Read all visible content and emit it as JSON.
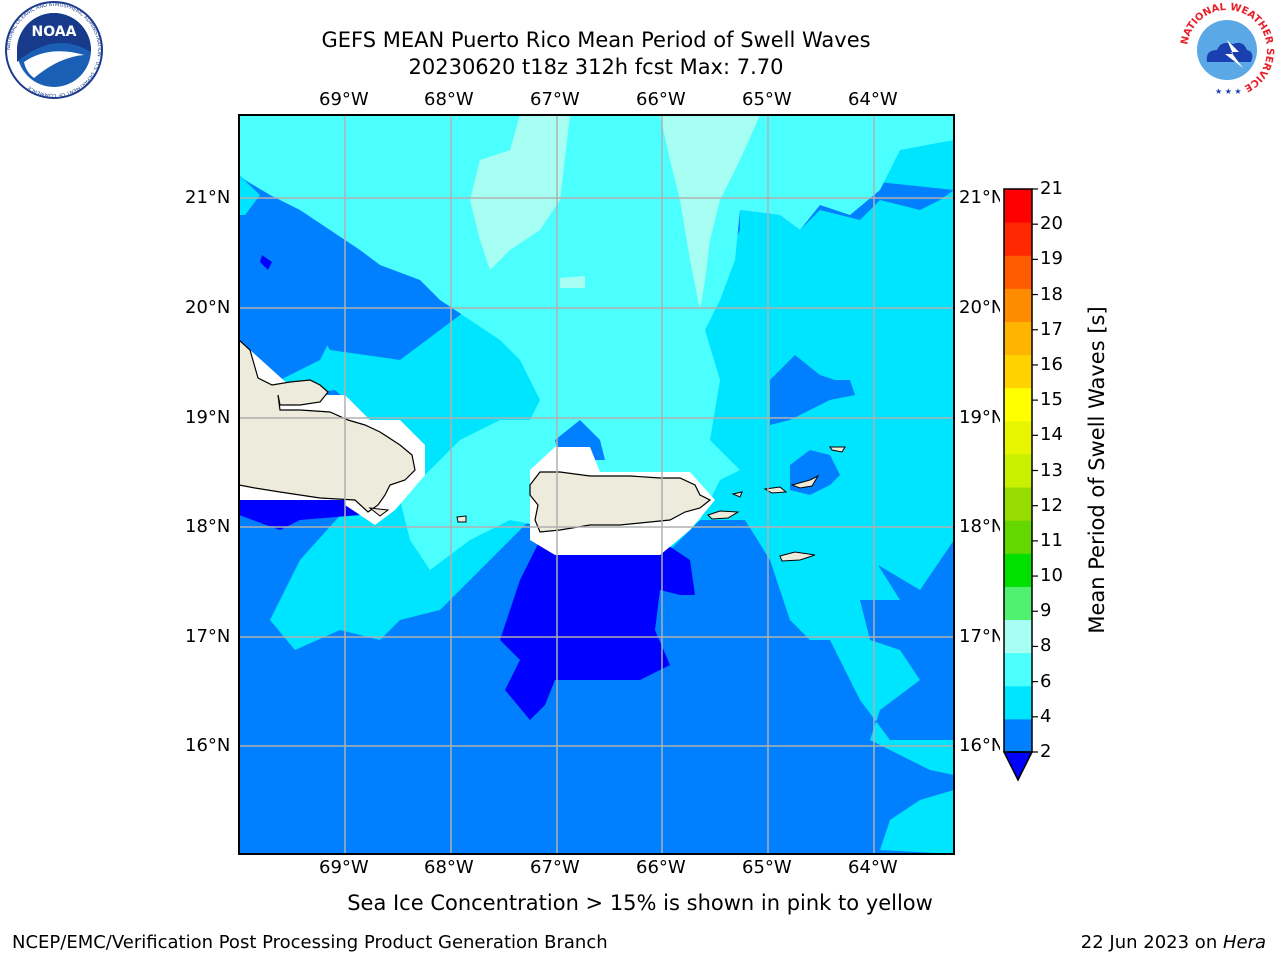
{
  "header": {
    "title_line1": "GEFS MEAN Puerto Rico Mean Period of Swell Waves",
    "title_line2": "20230620 t18z 312h fcst   Max: 7.70"
  },
  "logos": {
    "noaa": {
      "icon": "noaa-logo",
      "text": "NOAA",
      "ring_text": "NATIONAL OCEANIC AND ATMOSPHERIC ADMINISTRATION · U.S. DEPARTMENT OF COMMERCE"
    },
    "nws": {
      "icon": "nws-logo",
      "ring_text": "NATIONAL WEATHER SERVICE"
    }
  },
  "map": {
    "lon_labels": [
      "69°W",
      "68°W",
      "67°W",
      "66°W",
      "65°W",
      "64°W"
    ],
    "lat_labels": [
      "21°N",
      "20°N",
      "19°N",
      "18°N",
      "17°N",
      "16°N"
    ],
    "colors": {
      "land": "#ecebdc",
      "no_data": "#ffffff",
      "gridline": "#b0b0b0",
      "coastline": "#000000"
    }
  },
  "colorbar": {
    "title": "Mean Period of Swell Waves [s]",
    "levels": [
      "2",
      "4",
      "6",
      "8",
      "9",
      "10",
      "11",
      "12",
      "13",
      "14",
      "15",
      "16",
      "17",
      "18",
      "19",
      "20",
      "21"
    ],
    "colors": [
      "#0080ff",
      "#00e5ff",
      "#4cffff",
      "#a6fff2",
      "#50f070",
      "#00e100",
      "#64d600",
      "#96dc00",
      "#c8f000",
      "#e8f500",
      "#ffff00",
      "#ffd200",
      "#ffb400",
      "#ff8c00",
      "#ff5a00",
      "#ff2800",
      "#ff0000"
    ],
    "under_color": "#0000ff"
  },
  "note": "Sea Ice Concentration > 15% is shown in pink to yellow",
  "footer": {
    "left": "NCEP/EMC/Verification Post Processing Product Generation Branch",
    "date": "22 Jun 2023 on ",
    "machine": "Hera"
  }
}
